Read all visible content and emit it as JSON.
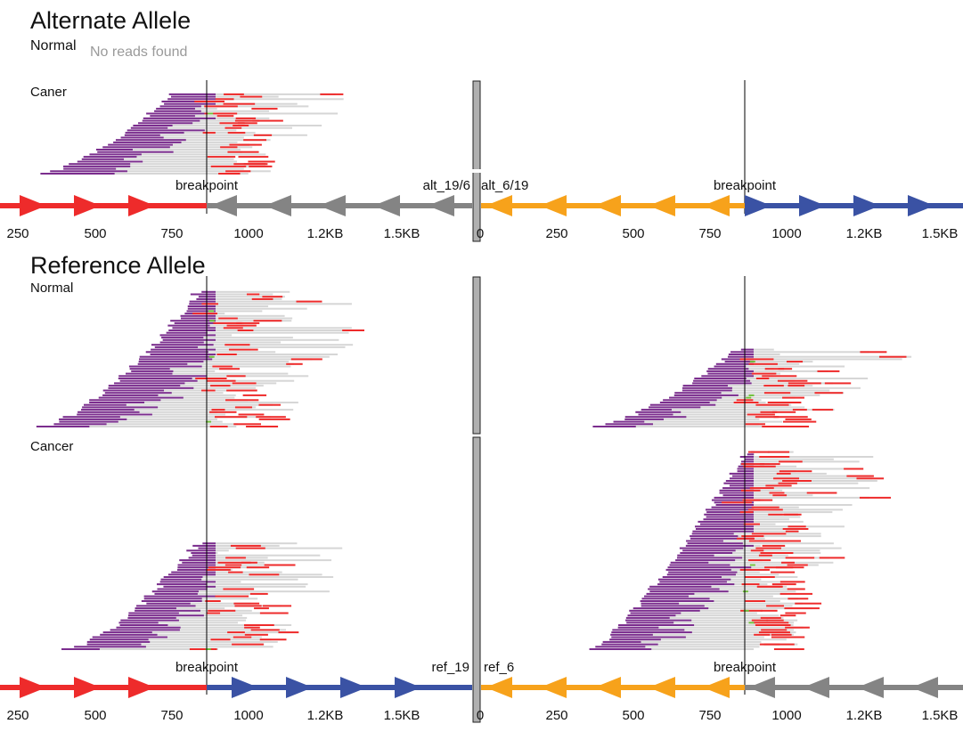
{
  "alt": {
    "title": "Alternate Allele",
    "normal_label": "Normal",
    "normal_message": "No reads found",
    "cancer_label": "Caner"
  },
  "ref": {
    "title": "Reference Allele",
    "normal_label": "Normal",
    "cancer_label": "Cancer"
  },
  "alt_track": {
    "breakpoint_label_left": "breakpoint",
    "breakpoint_label_right": "breakpoint",
    "segment_label_left": "alt_19/6",
    "segment_label_right": "alt_6/19",
    "ticks_left": [
      "250",
      "500",
      "750",
      "1000",
      "1.2KB",
      "1.5KB"
    ],
    "ticks_right": [
      "0",
      "250",
      "500",
      "750",
      "1000",
      "1.2KB",
      "1.5KB"
    ]
  },
  "ref_track": {
    "breakpoint_label_left": "breakpoint",
    "breakpoint_label_right": "breakpoint",
    "segment_label_left": "ref_19",
    "segment_label_right": "ref_6",
    "ticks_left": [
      "250",
      "500",
      "750",
      "1000",
      "1.2KB",
      "1.5KB"
    ],
    "ticks_right": [
      "0",
      "250",
      "500",
      "750",
      "1000",
      "1.2KB",
      "1.5KB"
    ]
  },
  "colors": {
    "red": "#ee2b2b",
    "gray": "#848484",
    "blue": "#3a52a4",
    "orange": "#f7a21b",
    "purple": "#7b2d8e",
    "read_gray": "#d6d6d6",
    "mismatch": "#6fbf3a",
    "divider": "#b0b0b0"
  }
}
